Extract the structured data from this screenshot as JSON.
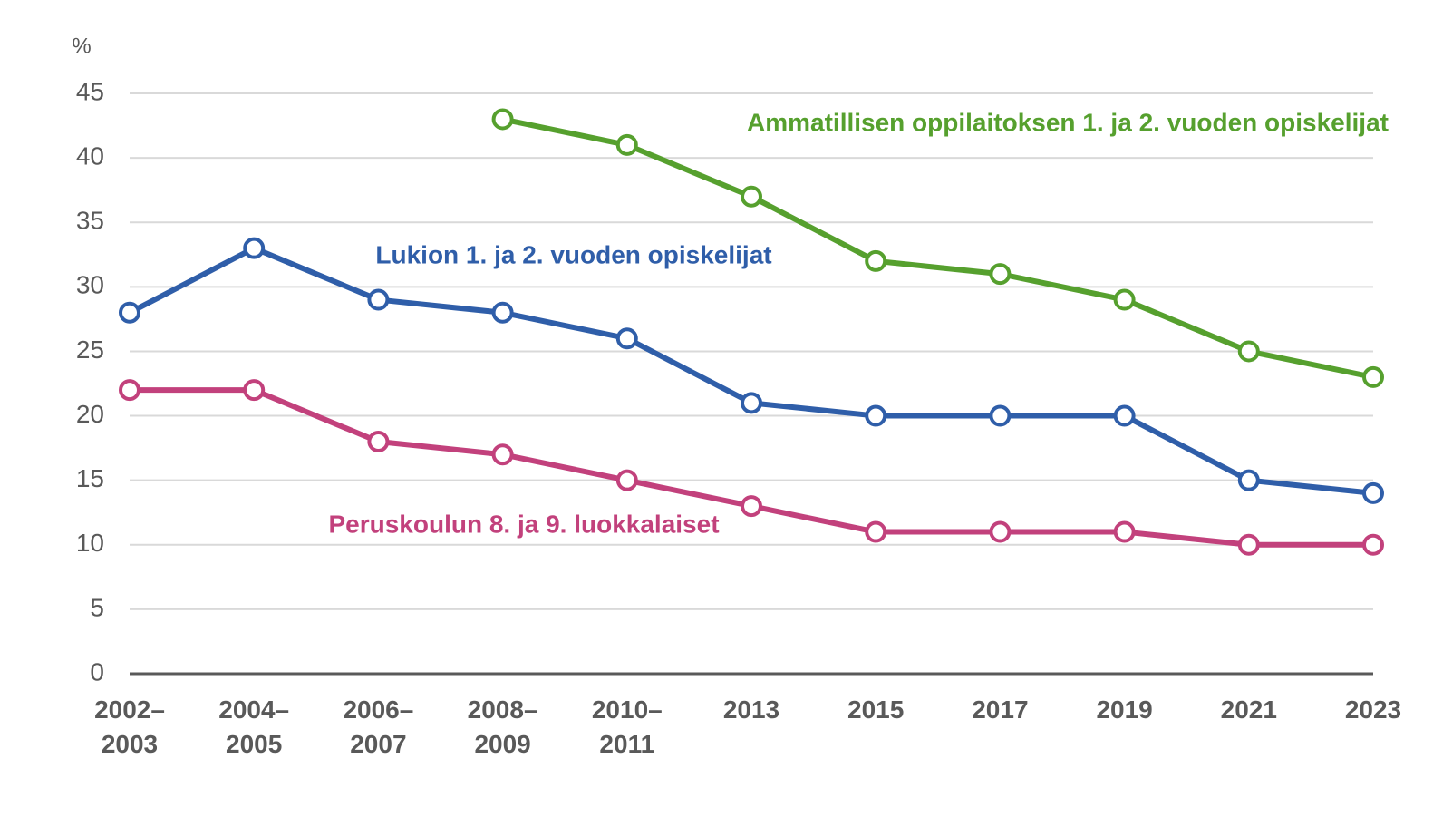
{
  "chart_data": {
    "type": "line",
    "y_label": "%",
    "categories": [
      "2002–2003",
      "2004–2005",
      "2006–2007",
      "2008–2009",
      "2010–2011",
      "2013",
      "2015",
      "2017",
      "2019",
      "2021",
      "2023"
    ],
    "series": [
      {
        "name": "Ammatillisen oppilaitoksen 1. ja 2. vuoden opiskelijat",
        "color": "#56a02e",
        "values": [
          null,
          null,
          null,
          43,
          41,
          37,
          32,
          31,
          29,
          25,
          23
        ]
      },
      {
        "name": "Lukion 1. ja 2. vuoden opiskelijat",
        "color": "#2f5ea9",
        "values": [
          28,
          33,
          29,
          28,
          26,
          21,
          20,
          20,
          20,
          15,
          14
        ]
      },
      {
        "name": "Peruskoulun 8. ja 9. luokkalaiset",
        "color": "#c2417c",
        "values": [
          22,
          22,
          18,
          17,
          15,
          13,
          11,
          11,
          11,
          10,
          10
        ]
      }
    ],
    "ylim": [
      0,
      45
    ],
    "yticks": [
      0,
      5,
      10,
      15,
      20,
      25,
      30,
      35,
      40,
      45
    ],
    "grid": true
  }
}
